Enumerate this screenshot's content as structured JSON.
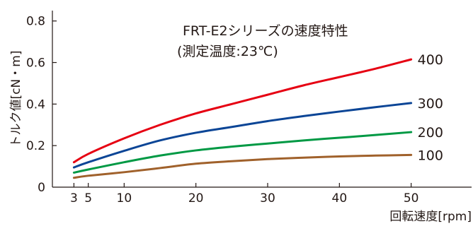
{
  "chart_data": {
    "type": "line",
    "title": "FRT-E2シリーズの速度特性",
    "subtitle": "(測定温度:23℃)",
    "xlabel": "回転速度[rpm]",
    "ylabel": "トルク値[cN・m]",
    "xlim": [
      0,
      60
    ],
    "ylim": [
      0,
      0.9
    ],
    "x_ticks": [
      {
        "value": 3,
        "label": "3"
      },
      {
        "value": 5,
        "label": "5"
      },
      {
        "value": 10,
        "label": "10"
      },
      {
        "value": 20,
        "label": "20"
      },
      {
        "value": 30,
        "label": "30"
      },
      {
        "value": 40,
        "label": "40"
      },
      {
        "value": 50,
        "label": "50"
      }
    ],
    "y_ticks": [
      {
        "value": 0,
        "label": "0"
      },
      {
        "value": 0.2,
        "label": "0.2"
      },
      {
        "value": 0.4,
        "label": "0.4"
      },
      {
        "value": 0.6,
        "label": "0.6"
      },
      {
        "value": 0.8,
        "label": "0.8"
      }
    ],
    "grid": false,
    "series": [
      {
        "name": "400",
        "color": "#e60012",
        "x": [
          3,
          5,
          10,
          15,
          20,
          25,
          30,
          35,
          40,
          45,
          50
        ],
        "y": [
          0.12,
          0.16,
          0.235,
          0.3,
          0.355,
          0.4,
          0.445,
          0.49,
          0.53,
          0.57,
          0.615
        ]
      },
      {
        "name": "300",
        "color": "#0b4596",
        "x": [
          3,
          5,
          10,
          15,
          20,
          25,
          30,
          35,
          40,
          45,
          50
        ],
        "y": [
          0.095,
          0.12,
          0.175,
          0.225,
          0.262,
          0.29,
          0.318,
          0.342,
          0.364,
          0.385,
          0.405
        ]
      },
      {
        "name": "200",
        "color": "#009944",
        "x": [
          3,
          5,
          10,
          15,
          20,
          25,
          30,
          35,
          40,
          45,
          50
        ],
        "y": [
          0.07,
          0.085,
          0.12,
          0.152,
          0.177,
          0.195,
          0.21,
          0.225,
          0.238,
          0.251,
          0.265
        ]
      },
      {
        "name": "100",
        "color": "#a0612b",
        "x": [
          3,
          5,
          10,
          15,
          20,
          25,
          30,
          35,
          40,
          45,
          50
        ],
        "y": [
          0.045,
          0.055,
          0.072,
          0.092,
          0.113,
          0.125,
          0.135,
          0.142,
          0.148,
          0.152,
          0.155
        ]
      }
    ]
  }
}
